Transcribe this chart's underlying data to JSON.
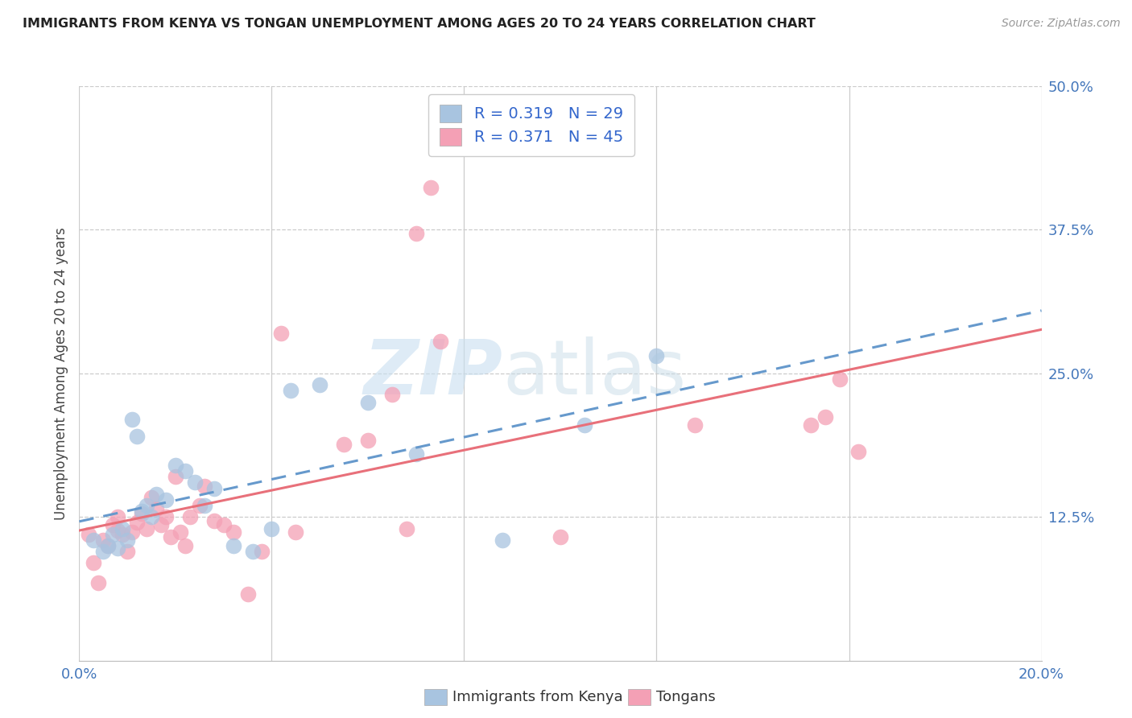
{
  "title": "IMMIGRANTS FROM KENYA VS TONGAN UNEMPLOYMENT AMONG AGES 20 TO 24 YEARS CORRELATION CHART",
  "source": "Source: ZipAtlas.com",
  "ylabel": "Unemployment Among Ages 20 to 24 years",
  "x_min": 0.0,
  "x_max": 0.2,
  "y_min": 0.0,
  "y_max": 0.5,
  "x_ticks": [
    0.0,
    0.04,
    0.08,
    0.12,
    0.16,
    0.2
  ],
  "x_tick_labels_show": [
    "0.0%",
    "",
    "",
    "",
    "",
    "20.0%"
  ],
  "y_ticks_right": [
    0.0,
    0.125,
    0.25,
    0.375,
    0.5
  ],
  "y_tick_labels_right": [
    "",
    "12.5%",
    "25.0%",
    "37.5%",
    "50.0%"
  ],
  "legend_label1": "Immigrants from Kenya",
  "legend_label2": "Tongans",
  "r1": 0.319,
  "n1": 29,
  "r2": 0.371,
  "n2": 45,
  "color1": "#a8c4e0",
  "color2": "#f4a0b5",
  "line1_color": "#6699cc",
  "line2_color": "#e8707a",
  "kenya_x": [
    0.003,
    0.005,
    0.006,
    0.007,
    0.008,
    0.009,
    0.01,
    0.011,
    0.012,
    0.013,
    0.014,
    0.015,
    0.016,
    0.018,
    0.02,
    0.022,
    0.024,
    0.026,
    0.028,
    0.032,
    0.036,
    0.04,
    0.044,
    0.05,
    0.06,
    0.07,
    0.088,
    0.105,
    0.12
  ],
  "kenya_y": [
    0.105,
    0.095,
    0.1,
    0.11,
    0.098,
    0.115,
    0.105,
    0.21,
    0.195,
    0.13,
    0.135,
    0.125,
    0.145,
    0.14,
    0.17,
    0.165,
    0.155,
    0.135,
    0.15,
    0.1,
    0.095,
    0.115,
    0.235,
    0.24,
    0.225,
    0.18,
    0.105,
    0.205,
    0.265
  ],
  "tongan_x": [
    0.002,
    0.003,
    0.004,
    0.005,
    0.006,
    0.007,
    0.008,
    0.008,
    0.009,
    0.01,
    0.011,
    0.012,
    0.013,
    0.014,
    0.015,
    0.016,
    0.017,
    0.018,
    0.019,
    0.02,
    0.021,
    0.022,
    0.023,
    0.025,
    0.026,
    0.028,
    0.03,
    0.032,
    0.035,
    0.038,
    0.042,
    0.045,
    0.055,
    0.06,
    0.065,
    0.068,
    0.07,
    0.073,
    0.075,
    0.1,
    0.128,
    0.152,
    0.155,
    0.158,
    0.162
  ],
  "tongan_y": [
    0.11,
    0.085,
    0.068,
    0.105,
    0.1,
    0.118,
    0.113,
    0.125,
    0.11,
    0.095,
    0.112,
    0.12,
    0.128,
    0.115,
    0.142,
    0.132,
    0.118,
    0.125,
    0.108,
    0.16,
    0.112,
    0.1,
    0.125,
    0.135,
    0.152,
    0.122,
    0.118,
    0.112,
    0.058,
    0.095,
    0.285,
    0.112,
    0.188,
    0.192,
    0.232,
    0.115,
    0.372,
    0.412,
    0.278,
    0.108,
    0.205,
    0.205,
    0.212,
    0.245,
    0.182
  ]
}
